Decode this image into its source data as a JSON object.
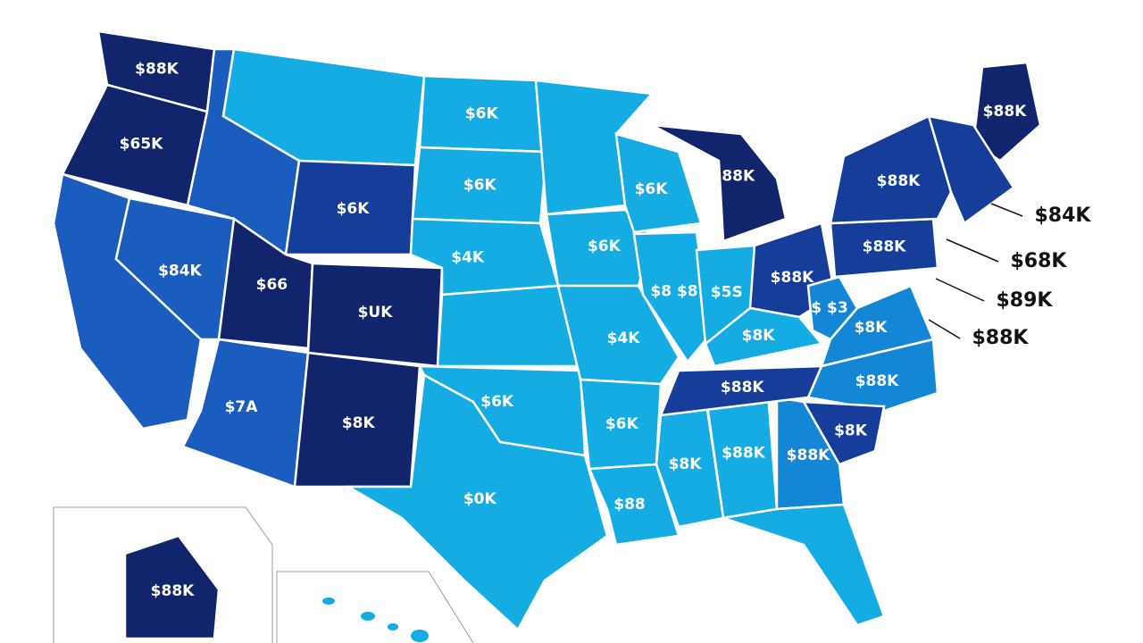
{
  "map": {
    "regions": [
      {
        "label": "$88K",
        "color": "#12246b"
      },
      {
        "label": "$65K",
        "color": "#12246b"
      },
      {
        "color": "#1b5cbf"
      },
      {
        "label": "$84K",
        "color": "#1b5cbf"
      },
      {
        "color": "#1b5cbf"
      },
      {
        "color": "#14ace3"
      },
      {
        "label": "$6K",
        "color": "#163d99"
      },
      {
        "label": "$66",
        "color": "#12246b"
      },
      {
        "label": "$UK",
        "color": "#12246b"
      },
      {
        "label": "$7A",
        "color": "#1b5cbf"
      },
      {
        "label": "$8K",
        "color": "#12246b"
      },
      {
        "label": "$6K",
        "color": "#14ace3"
      },
      {
        "label": "$6K",
        "color": "#14ace3"
      },
      {
        "label": "$4K",
        "color": "#14ace3"
      },
      {
        "color": "#14ace3"
      },
      {
        "label": "$6K",
        "color": "#14ace3"
      },
      {
        "label": "$0K",
        "color": "#14ace3"
      },
      {
        "color": "#14ace3"
      },
      {
        "label": "$6K",
        "color": "#14ace3"
      },
      {
        "label": "$4K",
        "color": "#14ace3"
      },
      {
        "label": "$6K",
        "color": "#14ace3"
      },
      {
        "label": "$88",
        "color": "#14ace3"
      },
      {
        "label": "$6K",
        "color": "#14ace3"
      },
      {
        "label": "$8 $8",
        "color": "#14ace3"
      },
      {
        "label": "$5S",
        "color": "#14ace3"
      },
      {
        "label": "$88K",
        "color": "#12246b"
      },
      {
        "label": "$88K",
        "color": "#163d99"
      },
      {
        "label": "$8K",
        "color": "#14ace3"
      },
      {
        "label": "$88K",
        "color": "#163d99"
      },
      {
        "label": "$ $3",
        "color": "#1486d6"
      },
      {
        "label": "$8K",
        "color": "#1486d6"
      },
      {
        "label": "$88K",
        "color": "#1486d6"
      },
      {
        "label": "$8K",
        "color": "#163d99"
      },
      {
        "label": "$88K",
        "color": "#1486d6"
      },
      {
        "label": "$88K",
        "color": "#14ace3"
      },
      {
        "label": "$8K",
        "color": "#14ace3"
      },
      {
        "color": "#14ace3"
      },
      {
        "label": "$88K",
        "color": "#163d99"
      },
      {
        "label": "$88K",
        "color": "#163d99"
      },
      {
        "label": "$88K",
        "color": "#12246b"
      },
      {
        "color": "#163d99"
      },
      {
        "label": "$88K",
        "color": "#12246b"
      }
    ],
    "callouts": [
      "$84K",
      "$68K",
      "$89K",
      "$88K"
    ]
  }
}
